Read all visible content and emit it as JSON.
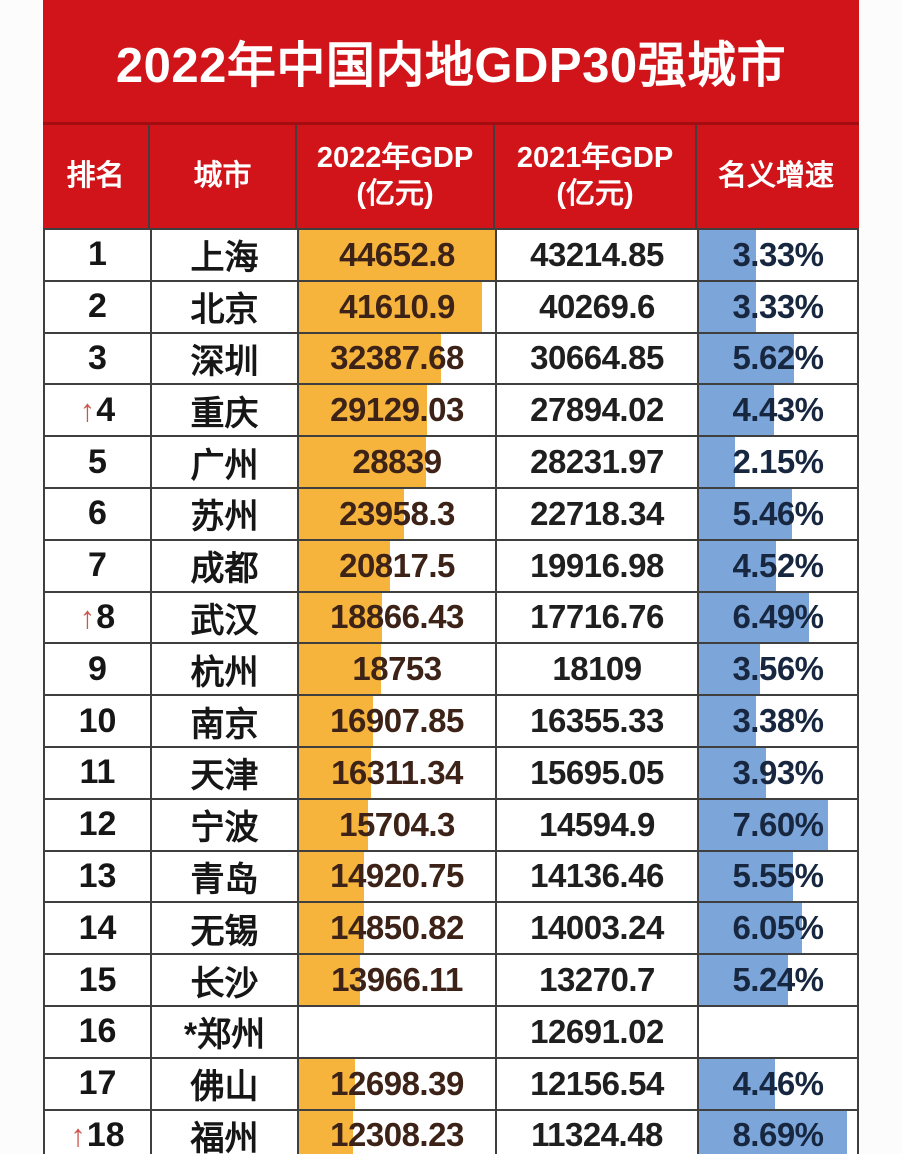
{
  "title": "2022年中国内地GDP30强城市",
  "colors": {
    "band_red": "#d11419",
    "band_divider_red": "#a30d11",
    "bar_orange": "#f6b43c",
    "bar_blue": "#7ca5da",
    "border_dark": "#3f3f3f",
    "text_dark": "#1f1f1f",
    "text_gdp2022": "#3d2317",
    "text_growth": "#182740",
    "arrow_red": "#cb564d",
    "header_text": "#ffffff"
  },
  "icons": {
    "up_arrow": "↑"
  },
  "table": {
    "headers": {
      "rank": "排名",
      "city": "城市",
      "gdp2022_line1": "2022年GDP",
      "gdp2022_line2": "(亿元)",
      "gdp2021_line1": "2021年GDP",
      "gdp2021_line2": "(亿元)",
      "growth": "名义增速"
    },
    "rows": [
      {
        "rank": "1",
        "arrow": false,
        "city": "上海",
        "gdp2022": "44652.8",
        "gdp2021": "43214.85",
        "growth": "3.33%",
        "bar2022_pct": 100,
        "growth_pct": 35.8
      },
      {
        "rank": "2",
        "arrow": false,
        "city": "北京",
        "gdp2022": "41610.9",
        "gdp2021": "40269.6",
        "growth": "3.33%",
        "bar2022_pct": 93.2,
        "growth_pct": 35.8
      },
      {
        "rank": "3",
        "arrow": false,
        "city": "深圳",
        "gdp2022": "32387.68",
        "gdp2021": "30664.85",
        "growth": "5.62%",
        "bar2022_pct": 72.5,
        "growth_pct": 60.4
      },
      {
        "rank": "4",
        "arrow": true,
        "city": "重庆",
        "gdp2022": "29129.03",
        "gdp2021": "27894.02",
        "growth": "4.43%",
        "bar2022_pct": 65.2,
        "growth_pct": 47.6
      },
      {
        "rank": "5",
        "arrow": false,
        "city": "广州",
        "gdp2022": "28839",
        "gdp2021": "28231.97",
        "growth": "2.15%",
        "bar2022_pct": 64.6,
        "growth_pct": 23.1
      },
      {
        "rank": "6",
        "arrow": false,
        "city": "苏州",
        "gdp2022": "23958.3",
        "gdp2021": "22718.34",
        "growth": "5.46%",
        "bar2022_pct": 53.7,
        "growth_pct": 58.7
      },
      {
        "rank": "7",
        "arrow": false,
        "city": "成都",
        "gdp2022": "20817.5",
        "gdp2021": "19916.98",
        "growth": "4.52%",
        "bar2022_pct": 46.6,
        "growth_pct": 48.6
      },
      {
        "rank": "8",
        "arrow": true,
        "city": "武汉",
        "gdp2022": "18866.43",
        "gdp2021": "17716.76",
        "growth": "6.49%",
        "bar2022_pct": 42.3,
        "growth_pct": 69.8
      },
      {
        "rank": "9",
        "arrow": false,
        "city": "杭州",
        "gdp2022": "18753",
        "gdp2021": "18109",
        "growth": "3.56%",
        "bar2022_pct": 42.0,
        "growth_pct": 38.3
      },
      {
        "rank": "10",
        "arrow": false,
        "city": "南京",
        "gdp2022": "16907.85",
        "gdp2021": "16355.33",
        "growth": "3.38%",
        "bar2022_pct": 37.9,
        "growth_pct": 36.3
      },
      {
        "rank": "11",
        "arrow": false,
        "city": "天津",
        "gdp2022": "16311.34",
        "gdp2021": "15695.05",
        "growth": "3.93%",
        "bar2022_pct": 36.5,
        "growth_pct": 42.3
      },
      {
        "rank": "12",
        "arrow": false,
        "city": "宁波",
        "gdp2022": "15704.3",
        "gdp2021": "14594.9",
        "growth": "7.60%",
        "bar2022_pct": 35.2,
        "growth_pct": 81.7
      },
      {
        "rank": "13",
        "arrow": false,
        "city": "青岛",
        "gdp2022": "14920.75",
        "gdp2021": "14136.46",
        "growth": "5.55%",
        "bar2022_pct": 33.4,
        "growth_pct": 59.7
      },
      {
        "rank": "14",
        "arrow": false,
        "city": "无锡",
        "gdp2022": "14850.82",
        "gdp2021": "14003.24",
        "growth": "6.05%",
        "bar2022_pct": 33.3,
        "growth_pct": 65.1
      },
      {
        "rank": "15",
        "arrow": false,
        "city": "长沙",
        "gdp2022": "13966.11",
        "gdp2021": "13270.7",
        "growth": "5.24%",
        "bar2022_pct": 31.3,
        "growth_pct": 56.3
      },
      {
        "rank": "16",
        "arrow": false,
        "city": "*郑州",
        "gdp2022": "",
        "gdp2021": "12691.02",
        "growth": "",
        "bar2022_pct": null,
        "growth_pct": null
      },
      {
        "rank": "17",
        "arrow": false,
        "city": "佛山",
        "gdp2022": "12698.39",
        "gdp2021": "12156.54",
        "growth": "4.46%",
        "bar2022_pct": 28.4,
        "growth_pct": 48.0
      },
      {
        "rank": "18",
        "arrow": true,
        "city": "福州",
        "gdp2022": "12308.23",
        "gdp2021": "11324.48",
        "growth": "8.69%",
        "bar2022_pct": 27.6,
        "growth_pct": 93.4
      }
    ]
  },
  "chart_data": {
    "type": "table",
    "title": "2022年中国内地GDP30强城市",
    "columns": [
      "排名",
      "城市",
      "2022年GDP(亿元)",
      "2021年GDP(亿元)",
      "名义增速"
    ],
    "rows": [
      [
        1,
        "上海",
        44652.8,
        43214.85,
        3.33
      ],
      [
        2,
        "北京",
        41610.9,
        40269.6,
        3.33
      ],
      [
        3,
        "深圳",
        32387.68,
        30664.85,
        5.62
      ],
      [
        4,
        "重庆",
        29129.03,
        27894.02,
        4.43
      ],
      [
        5,
        "广州",
        28839,
        28231.97,
        2.15
      ],
      [
        6,
        "苏州",
        23958.3,
        22718.34,
        5.46
      ],
      [
        7,
        "成都",
        20817.5,
        19916.98,
        4.52
      ],
      [
        8,
        "武汉",
        18866.43,
        17716.76,
        6.49
      ],
      [
        9,
        "杭州",
        18753,
        18109,
        3.56
      ],
      [
        10,
        "南京",
        16907.85,
        16355.33,
        3.38
      ],
      [
        11,
        "天津",
        16311.34,
        15695.05,
        3.93
      ],
      [
        12,
        "宁波",
        15704.3,
        14594.9,
        7.6
      ],
      [
        13,
        "青岛",
        14920.75,
        14136.46,
        5.55
      ],
      [
        14,
        "无锡",
        14850.82,
        14003.24,
        6.05
      ],
      [
        15,
        "长沙",
        13966.11,
        13270.7,
        5.24
      ],
      [
        16,
        "*郑州",
        null,
        12691.02,
        null
      ],
      [
        17,
        "佛山",
        12698.39,
        12156.54,
        4.46
      ],
      [
        18,
        "福州",
        12308.23,
        11324.48,
        8.69
      ]
    ],
    "growth_unit": "percent",
    "databar_columns": {
      "gdp2022": {
        "color": "#f6b43c",
        "max": 44652.8
      },
      "growth": {
        "color": "#7ca5da",
        "visual_max_pct": 9.3
      }
    },
    "rank_up_arrow_rows": [
      4,
      8,
      18
    ],
    "visible_rows": 18,
    "last_row_clipped": true
  }
}
